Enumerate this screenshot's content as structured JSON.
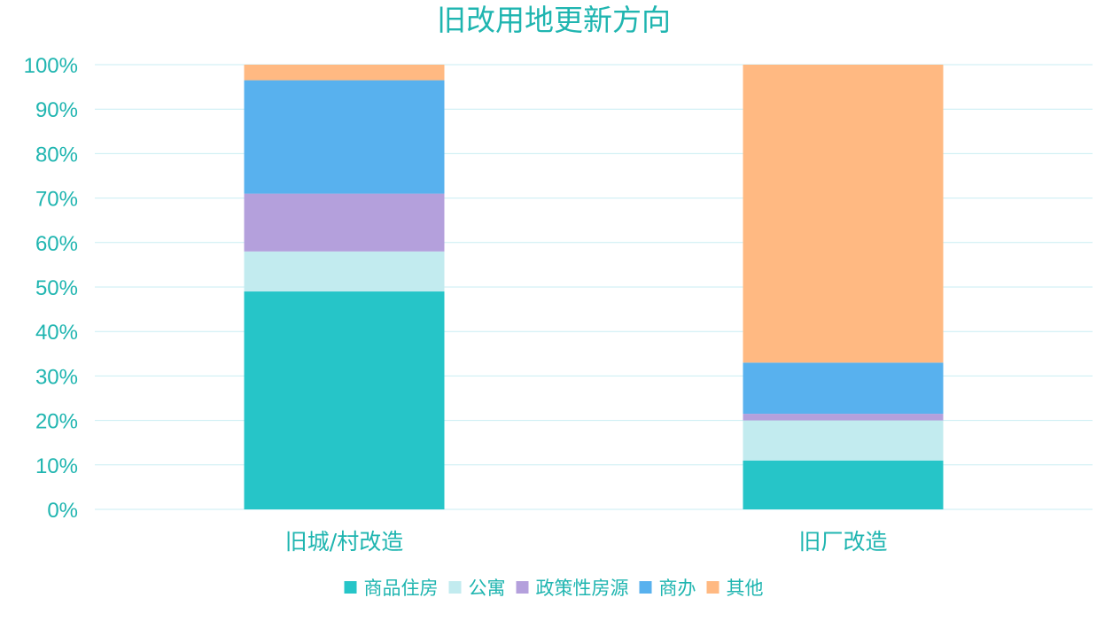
{
  "chart_data": {
    "type": "bar",
    "stacked": true,
    "title": "旧改用地更新方向",
    "categories": [
      "旧城/村改造",
      "旧厂改造"
    ],
    "series": [
      {
        "name": "商品住房",
        "color": "#26c5c8",
        "values": [
          49,
          11
        ]
      },
      {
        "name": "公寓",
        "color": "#c2ebef",
        "values": [
          9,
          9
        ]
      },
      {
        "name": "政策性房源",
        "color": "#b4a0dc",
        "values": [
          13,
          1.5
        ]
      },
      {
        "name": "商办",
        "color": "#58b1ee",
        "values": [
          25.5,
          11.5
        ]
      },
      {
        "name": "其他",
        "color": "#ffb982",
        "values": [
          3.5,
          67
        ]
      }
    ],
    "ylim": [
      0,
      100
    ],
    "yticks": [
      "0%",
      "10%",
      "20%",
      "30%",
      "40%",
      "50%",
      "60%",
      "70%",
      "80%",
      "90%",
      "100%"
    ],
    "grid": true,
    "legend_position": "bottom"
  }
}
